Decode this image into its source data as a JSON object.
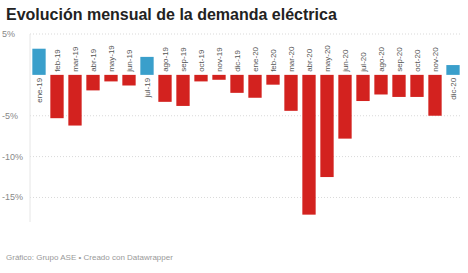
{
  "chart_data": {
    "type": "bar",
    "title": "Evolución mensual de la demanda eléctrica",
    "source": "Gráfico: Grupo ASE • Creado con Datawrapper",
    "categories": [
      "ene-19",
      "feb-19",
      "mar-19",
      "abr-19",
      "may-19",
      "jun-19",
      "jul-19",
      "ago-19",
      "sep-19",
      "oct-19",
      "nov-19",
      "dic-19",
      "ene-20",
      "feb-20",
      "mar-20",
      "abr-20",
      "may-20",
      "jun-20",
      "jul-20",
      "ago-20",
      "sep-20",
      "oct-20",
      "nov-20",
      "dic-20"
    ],
    "values": [
      3.2,
      -5.3,
      -6.2,
      -1.9,
      -0.8,
      -1.3,
      2.2,
      -3.3,
      -3.8,
      -0.8,
      -0.6,
      -2.2,
      -2.8,
      -1.2,
      -4.4,
      -17.1,
      -12.5,
      -7.8,
      -3.2,
      -2.4,
      -2.7,
      -2.7,
      -5.0,
      1.2
    ],
    "colors": [
      "#3a9fcb",
      "#d3221f",
      "#d3221f",
      "#d3221f",
      "#d3221f",
      "#d3221f",
      "#3a9fcb",
      "#d3221f",
      "#d3221f",
      "#d3221f",
      "#d3221f",
      "#d3221f",
      "#d3221f",
      "#d3221f",
      "#d3221f",
      "#d3221f",
      "#d3221f",
      "#d3221f",
      "#d3221f",
      "#d3221f",
      "#d3221f",
      "#d3221f",
      "#d3221f",
      "#3a9fcb"
    ],
    "ylim": [
      -18,
      5
    ],
    "yticks": [
      {
        "value": 5,
        "label": "5%"
      },
      {
        "value": -5,
        "label": "-5%"
      },
      {
        "value": -10,
        "label": "-10%"
      },
      {
        "value": -15,
        "label": "-15%"
      }
    ],
    "grid": true
  }
}
